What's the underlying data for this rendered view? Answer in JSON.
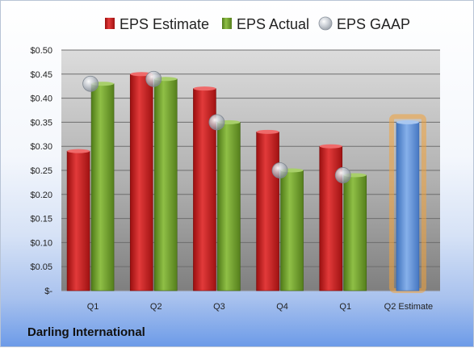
{
  "company_name": "Darling International",
  "chart_data": {
    "type": "bar",
    "categories": [
      "Q1",
      "Q2",
      "Q3",
      "Q4",
      "Q1",
      "Q2 Estimate"
    ],
    "series": [
      {
        "name": "EPS Estimate",
        "kind": "bar",
        "color": "#cc1f1f",
        "values": [
          0.29,
          0.45,
          0.42,
          0.33,
          0.3,
          null
        ]
      },
      {
        "name": "EPS Actual",
        "kind": "bar",
        "color": "#74a22c",
        "values": [
          0.43,
          0.44,
          0.35,
          0.25,
          0.24,
          null
        ]
      },
      {
        "name": "EPS GAAP",
        "kind": "marker",
        "color": "#9aa3ae",
        "values": [
          0.43,
          0.44,
          0.35,
          0.25,
          0.24,
          null
        ]
      }
    ],
    "highlight": {
      "category": "Q2 Estimate",
      "value": 0.35,
      "color": "#5b8fd6",
      "glow": "#f2a23a"
    },
    "yticks": [
      "$0.50",
      "$0.45",
      "$0.40",
      "$0.35",
      "$0.30",
      "$0.25",
      "$0.20",
      "$0.15",
      "$0.10",
      "$0.05",
      "$-"
    ],
    "ylim": [
      0,
      0.5
    ],
    "grid": true,
    "legend_position": "top"
  }
}
